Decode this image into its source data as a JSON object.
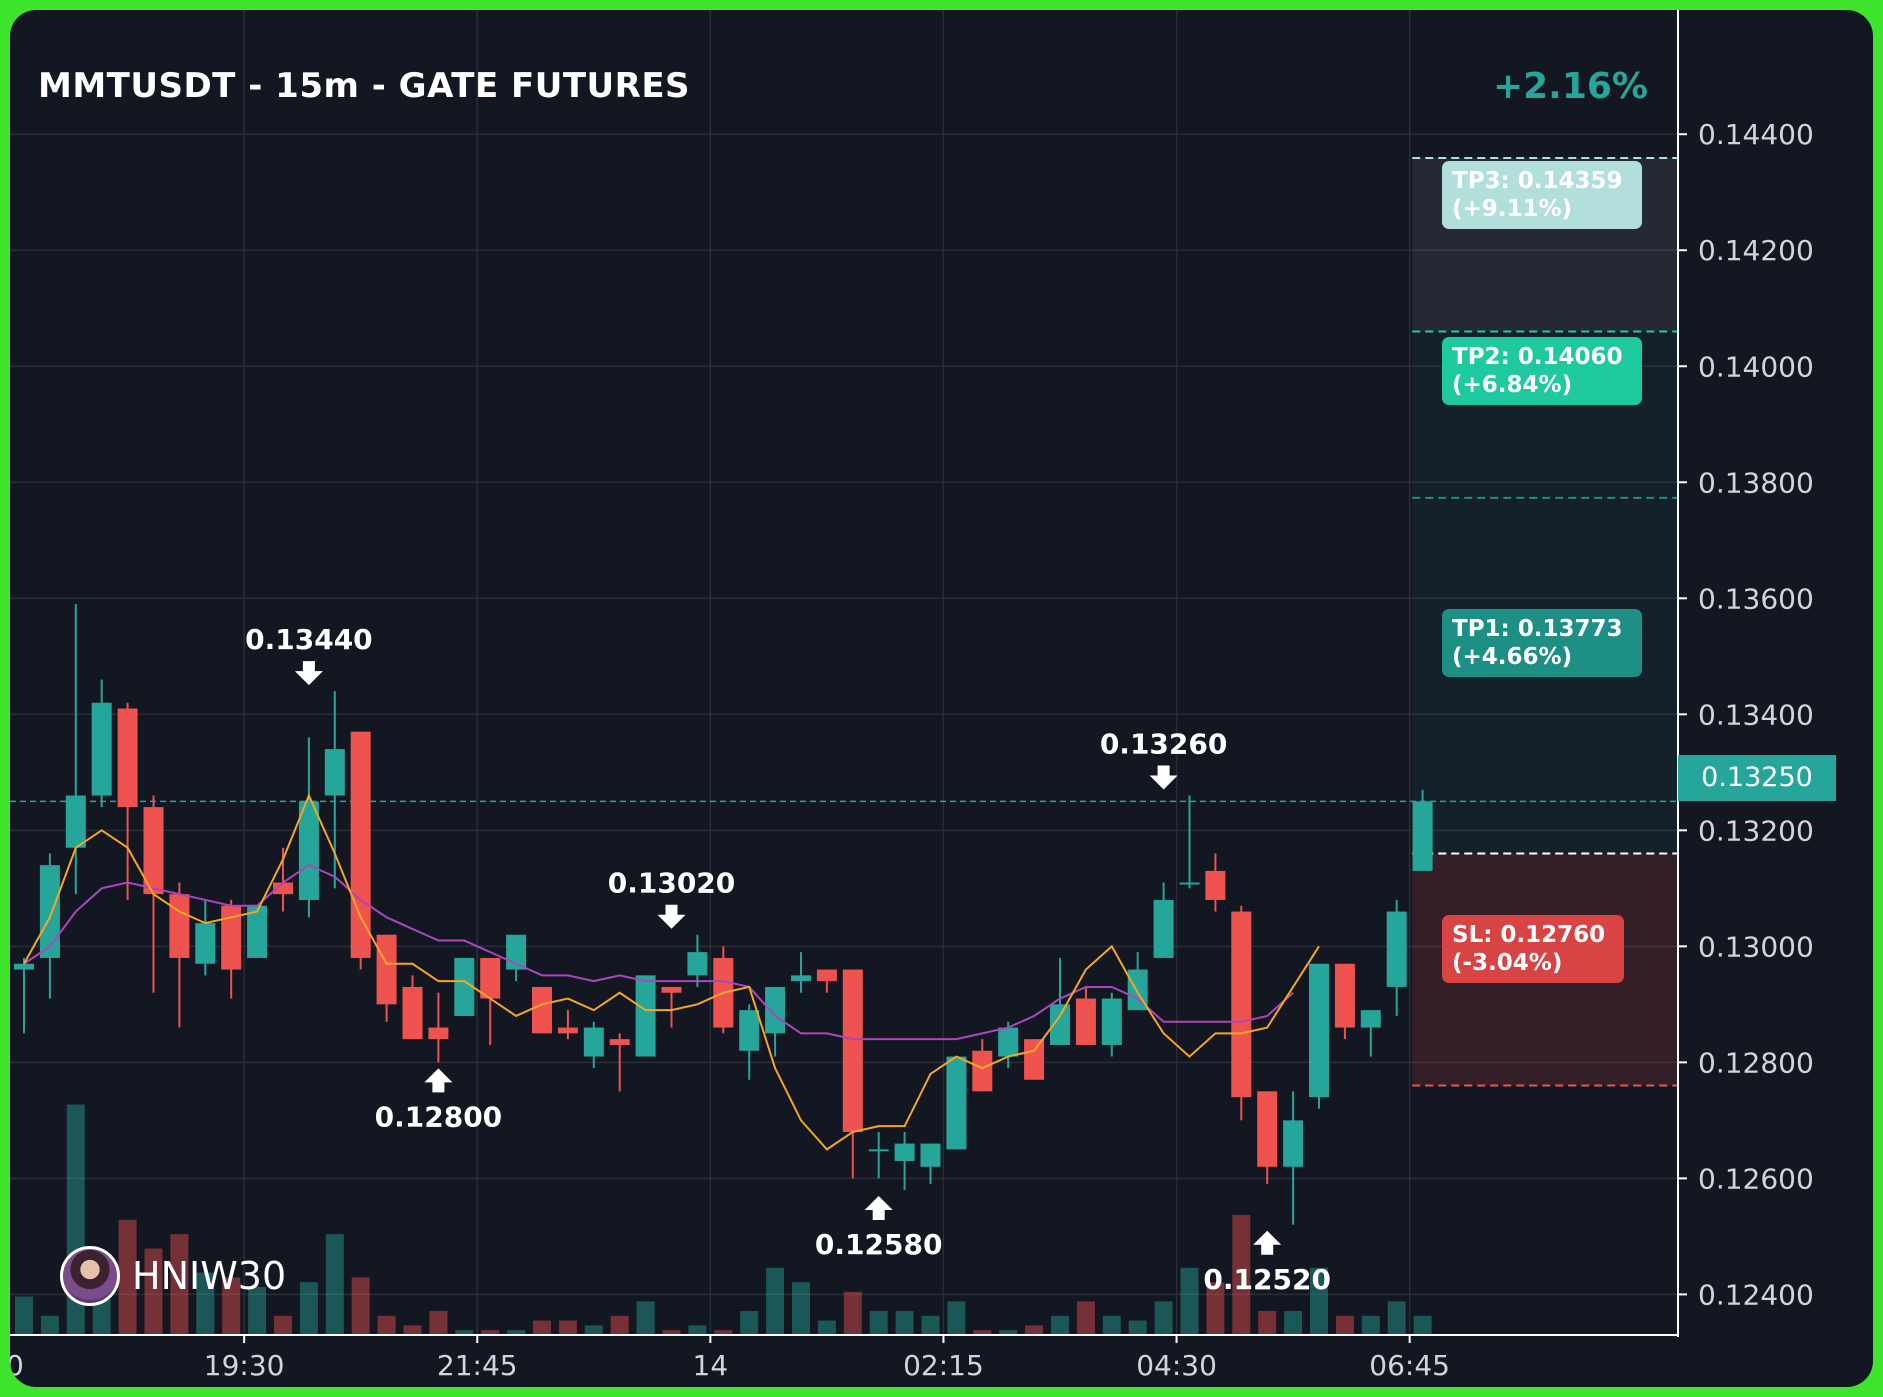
{
  "header": {
    "title": "MMTUSDT - 15m - GATE FUTURES",
    "change_pct": "+2.16%"
  },
  "brand": {
    "name": "HNIW30",
    "avatar_icon": "avatar-icon"
  },
  "colors": {
    "background": "#131722",
    "frame": "#3ee52c",
    "up": "#26a69a",
    "down": "#ef5350",
    "ma_fast": "#f5a623",
    "ma_slow": "#ab47bc",
    "text": "#ffffff",
    "axis_text": "#d1d4dc"
  },
  "targets": {
    "tp3": {
      "label": "TP3: 0.14359",
      "pct": "(+9.11%)",
      "price": 0.14359,
      "color": "#b2dfdb"
    },
    "tp2": {
      "label": "TP2: 0.14060",
      "pct": "(+6.84%)",
      "price": 0.1406,
      "color": "#1ec99f"
    },
    "tp1": {
      "label": "TP1: 0.13773",
      "pct": "(+4.66%)",
      "price": 0.13773,
      "color": "#1e8f85"
    },
    "sl": {
      "label": "SL: 0.12760",
      "pct": "(-3.04%)",
      "price": 0.1276,
      "color": "#d84343"
    },
    "entry": 0.1316
  },
  "current_price": {
    "label": "0.13250",
    "value": 0.1325
  },
  "chart_data": {
    "type": "candlestick",
    "title": "MMTUSDT - 15m - GATE FUTURES",
    "ylim": [
      0.1233,
      0.1459
    ],
    "y_ticks": [
      "0.14400",
      "0.14200",
      "0.14000",
      "0.13800",
      "0.13600",
      "0.13400",
      "0.13200",
      "0.13000",
      "0.12800",
      "0.12600",
      "0.12400"
    ],
    "x_ticks": [
      {
        "label": "19:30",
        "index": 8.5
      },
      {
        "label": "21:45",
        "index": 17.5
      },
      {
        "label": "14",
        "index": 26.5
      },
      {
        "label": "02:15",
        "index": 35.5
      },
      {
        "label": "04:30",
        "index": 44.5
      },
      {
        "label": "06:45",
        "index": 53.5
      }
    ],
    "candles": [
      {
        "o": 0.1296,
        "h": 0.1298,
        "l": 0.1285,
        "c": 0.1297
      },
      {
        "o": 0.1298,
        "h": 0.1316,
        "l": 0.1291,
        "c": 0.1314
      },
      {
        "o": 0.1317,
        "h": 0.1359,
        "l": 0.1309,
        "c": 0.1326
      },
      {
        "o": 0.1326,
        "h": 0.1346,
        "l": 0.1324,
        "c": 0.1342
      },
      {
        "o": 0.1341,
        "h": 0.1342,
        "l": 0.1308,
        "c": 0.1324
      },
      {
        "o": 0.1324,
        "h": 0.1326,
        "l": 0.1292,
        "c": 0.1309
      },
      {
        "o": 0.1309,
        "h": 0.1311,
        "l": 0.1286,
        "c": 0.1298
      },
      {
        "o": 0.1297,
        "h": 0.1308,
        "l": 0.1295,
        "c": 0.1304
      },
      {
        "o": 0.1307,
        "h": 0.1308,
        "l": 0.1291,
        "c": 0.1296
      },
      {
        "o": 0.1298,
        "h": 0.1307,
        "l": 0.1298,
        "c": 0.1307
      },
      {
        "o": 0.1311,
        "h": 0.1317,
        "l": 0.1306,
        "c": 0.1309
      },
      {
        "o": 0.1308,
        "h": 0.1336,
        "l": 0.1305,
        "c": 0.1325
      },
      {
        "o": 0.1326,
        "h": 0.1344,
        "l": 0.131,
        "c": 0.1334
      },
      {
        "o": 0.1337,
        "h": 0.1337,
        "l": 0.1296,
        "c": 0.1298
      },
      {
        "o": 0.1302,
        "h": 0.1302,
        "l": 0.1287,
        "c": 0.129
      },
      {
        "o": 0.1293,
        "h": 0.1295,
        "l": 0.1284,
        "c": 0.1284
      },
      {
        "o": 0.1286,
        "h": 0.1292,
        "l": 0.128,
        "c": 0.1284
      },
      {
        "o": 0.1288,
        "h": 0.1298,
        "l": 0.1288,
        "c": 0.1298
      },
      {
        "o": 0.1298,
        "h": 0.1298,
        "l": 0.1283,
        "c": 0.1291
      },
      {
        "o": 0.1296,
        "h": 0.1301,
        "l": 0.1294,
        "c": 0.1302
      },
      {
        "o": 0.1293,
        "h": 0.1293,
        "l": 0.1285,
        "c": 0.1285
      },
      {
        "o": 0.1286,
        "h": 0.1289,
        "l": 0.1284,
        "c": 0.1285
      },
      {
        "o": 0.1281,
        "h": 0.1287,
        "l": 0.1279,
        "c": 0.1286
      },
      {
        "o": 0.1284,
        "h": 0.1285,
        "l": 0.1275,
        "c": 0.1283
      },
      {
        "o": 0.1281,
        "h": 0.1295,
        "l": 0.1281,
        "c": 0.1295
      },
      {
        "o": 0.1293,
        "h": 0.1293,
        "l": 0.1286,
        "c": 0.1292
      },
      {
        "o": 0.1295,
        "h": 0.1302,
        "l": 0.1293,
        "c": 0.1299
      },
      {
        "o": 0.1298,
        "h": 0.13,
        "l": 0.1285,
        "c": 0.1286
      },
      {
        "o": 0.1282,
        "h": 0.129,
        "l": 0.1277,
        "c": 0.1289
      },
      {
        "o": 0.1285,
        "h": 0.1293,
        "l": 0.1281,
        "c": 0.1293
      },
      {
        "o": 0.1294,
        "h": 0.1299,
        "l": 0.1292,
        "c": 0.1295
      },
      {
        "o": 0.1296,
        "h": 0.1296,
        "l": 0.1292,
        "c": 0.1294
      },
      {
        "o": 0.1296,
        "h": 0.1296,
        "l": 0.126,
        "c": 0.1268
      },
      {
        "o": 0.1265,
        "h": 0.1268,
        "l": 0.126,
        "c": 0.1265
      },
      {
        "o": 0.1263,
        "h": 0.1268,
        "l": 0.1258,
        "c": 0.1266
      },
      {
        "o": 0.1262,
        "h": 0.1266,
        "l": 0.1259,
        "c": 0.1266
      },
      {
        "o": 0.1265,
        "h": 0.1281,
        "l": 0.1265,
        "c": 0.1281
      },
      {
        "o": 0.1282,
        "h": 0.1284,
        "l": 0.1275,
        "c": 0.1275
      },
      {
        "o": 0.1281,
        "h": 0.1287,
        "l": 0.1279,
        "c": 0.1286
      },
      {
        "o": 0.1284,
        "h": 0.1284,
        "l": 0.1277,
        "c": 0.1277
      },
      {
        "o": 0.1283,
        "h": 0.1298,
        "l": 0.1283,
        "c": 0.129
      },
      {
        "o": 0.1291,
        "h": 0.1293,
        "l": 0.1283,
        "c": 0.1283
      },
      {
        "o": 0.1283,
        "h": 0.1292,
        "l": 0.1281,
        "c": 0.1291
      },
      {
        "o": 0.1289,
        "h": 0.1299,
        "l": 0.1289,
        "c": 0.1296
      },
      {
        "o": 0.1298,
        "h": 0.1311,
        "l": 0.1298,
        "c": 0.1308
      },
      {
        "o": 0.1311,
        "h": 0.1326,
        "l": 0.131,
        "c": 0.1311
      },
      {
        "o": 0.1313,
        "h": 0.1316,
        "l": 0.1306,
        "c": 0.1308
      },
      {
        "o": 0.1306,
        "h": 0.1307,
        "l": 0.127,
        "c": 0.1274
      },
      {
        "o": 0.1275,
        "h": 0.1275,
        "l": 0.1259,
        "c": 0.1262
      },
      {
        "o": 0.1262,
        "h": 0.1275,
        "l": 0.1252,
        "c": 0.127
      },
      {
        "o": 0.1274,
        "h": 0.1297,
        "l": 0.1272,
        "c": 0.1297
      },
      {
        "o": 0.1297,
        "h": 0.1297,
        "l": 0.1284,
        "c": 0.1286
      },
      {
        "o": 0.1286,
        "h": 0.1289,
        "l": 0.1281,
        "c": 0.1289
      },
      {
        "o": 0.1293,
        "h": 0.1308,
        "l": 0.1288,
        "c": 0.1306
      },
      {
        "o": 0.1313,
        "h": 0.1327,
        "l": 0.1313,
        "c": 0.1325
      }
    ],
    "volumes": [
      {
        "v": 0.08,
        "up": true
      },
      {
        "v": 0.04,
        "up": true
      },
      {
        "v": 0.48,
        "up": true
      },
      {
        "v": 0.13,
        "up": true
      },
      {
        "v": 0.24,
        "up": false
      },
      {
        "v": 0.18,
        "up": false
      },
      {
        "v": 0.21,
        "up": false
      },
      {
        "v": 0.13,
        "up": true
      },
      {
        "v": 0.12,
        "up": false
      },
      {
        "v": 0.1,
        "up": true
      },
      {
        "v": 0.04,
        "up": false
      },
      {
        "v": 0.11,
        "up": true
      },
      {
        "v": 0.21,
        "up": true
      },
      {
        "v": 0.12,
        "up": false
      },
      {
        "v": 0.04,
        "up": false
      },
      {
        "v": 0.02,
        "up": false
      },
      {
        "v": 0.05,
        "up": false
      },
      {
        "v": 0.01,
        "up": true
      },
      {
        "v": 0.01,
        "up": false
      },
      {
        "v": 0.01,
        "up": true
      },
      {
        "v": 0.03,
        "up": false
      },
      {
        "v": 0.03,
        "up": false
      },
      {
        "v": 0.02,
        "up": true
      },
      {
        "v": 0.04,
        "up": false
      },
      {
        "v": 0.07,
        "up": true
      },
      {
        "v": 0.01,
        "up": false
      },
      {
        "v": 0.02,
        "up": true
      },
      {
        "v": 0.01,
        "up": false
      },
      {
        "v": 0.05,
        "up": true
      },
      {
        "v": 0.14,
        "up": true
      },
      {
        "v": 0.11,
        "up": true
      },
      {
        "v": 0.03,
        "up": true
      },
      {
        "v": 0.09,
        "up": false
      },
      {
        "v": 0.05,
        "up": true
      },
      {
        "v": 0.05,
        "up": true
      },
      {
        "v": 0.04,
        "up": true
      },
      {
        "v": 0.07,
        "up": true
      },
      {
        "v": 0.01,
        "up": false
      },
      {
        "v": 0.01,
        "up": true
      },
      {
        "v": 0.02,
        "up": false
      },
      {
        "v": 0.04,
        "up": true
      },
      {
        "v": 0.07,
        "up": false
      },
      {
        "v": 0.04,
        "up": true
      },
      {
        "v": 0.03,
        "up": true
      },
      {
        "v": 0.07,
        "up": true
      },
      {
        "v": 0.14,
        "up": true
      },
      {
        "v": 0.11,
        "up": false
      },
      {
        "v": 0.25,
        "up": false
      },
      {
        "v": 0.05,
        "up": false
      },
      {
        "v": 0.05,
        "up": true
      },
      {
        "v": 0.14,
        "up": true
      },
      {
        "v": 0.04,
        "up": false
      },
      {
        "v": 0.04,
        "up": true
      },
      {
        "v": 0.07,
        "up": true
      },
      {
        "v": 0.04,
        "up": true
      }
    ],
    "ma_fast": [
      0.1297,
      0.1305,
      0.1317,
      0.132,
      0.1317,
      0.1309,
      0.1306,
      0.1304,
      0.1305,
      0.1306,
      0.1315,
      0.1326,
      0.1316,
      0.1305,
      0.1297,
      0.1297,
      0.1294,
      0.1294,
      0.1291,
      0.1288,
      0.129,
      0.1291,
      0.1289,
      0.1292,
      0.1289,
      0.1289,
      0.129,
      0.1292,
      0.1293,
      0.1279,
      0.127,
      0.1265,
      0.1268,
      0.1269,
      0.1269,
      0.1278,
      0.1281,
      0.1279,
      0.1281,
      0.1282,
      0.1288,
      0.1296,
      0.13,
      0.1292,
      0.1285,
      0.1281,
      0.1285,
      0.1285,
      0.1286,
      0.1293,
      0.13
    ],
    "ma_fast_start": 0,
    "ma_slow": [
      0.1297,
      0.13,
      0.1306,
      0.131,
      0.1311,
      0.131,
      0.1309,
      0.1308,
      0.1307,
      0.1307,
      0.1311,
      0.1314,
      0.1312,
      0.1308,
      0.1305,
      0.1303,
      0.1301,
      0.1301,
      0.1299,
      0.1297,
      0.1295,
      0.1295,
      0.1294,
      0.1295,
      0.1294,
      0.1294,
      0.1294,
      0.1294,
      0.1293,
      0.1288,
      0.1285,
      0.1285,
      0.1284,
      0.1284,
      0.1284,
      0.1284,
      0.1284,
      0.1285,
      0.1286,
      0.1288,
      0.1291,
      0.1293,
      0.1293,
      0.1291,
      0.1287,
      0.1287,
      0.1287,
      0.1287,
      0.1288,
      0.1292
    ],
    "ma_slow_start": 0,
    "markers": [
      {
        "label": "0.13440",
        "index": 11,
        "price": 0.1344,
        "dir": "down"
      },
      {
        "label": "0.12800",
        "index": 16,
        "price": 0.128,
        "dir": "up"
      },
      {
        "label": "0.13020",
        "index": 25,
        "price": 0.1302,
        "dir": "down"
      },
      {
        "label": "0.12580",
        "index": 33,
        "price": 0.1258,
        "dir": "up"
      },
      {
        "label": "0.13260",
        "index": 44,
        "price": 0.1326,
        "dir": "down"
      },
      {
        "label": "0.12520",
        "index": 48,
        "price": 0.1252,
        "dir": "up"
      }
    ],
    "x_edge_label": "0"
  }
}
